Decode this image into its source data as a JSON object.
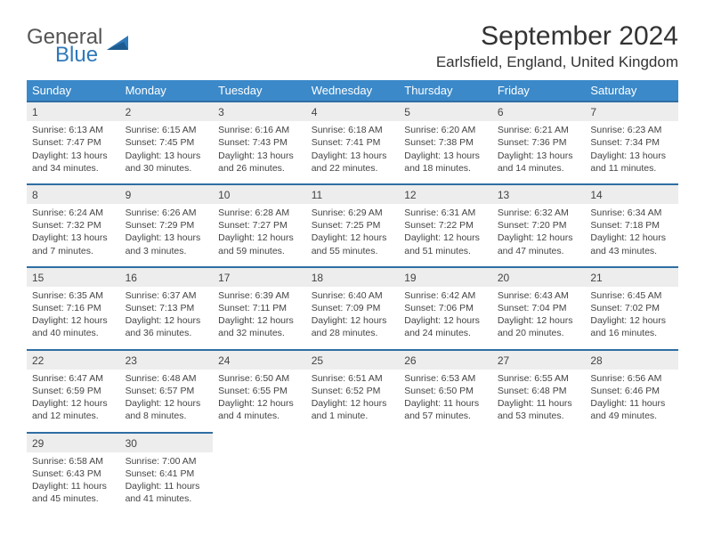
{
  "brand": {
    "line1": "General",
    "line2": "Blue"
  },
  "title": "September 2024",
  "location": "Earlsfield, England, United Kingdom",
  "colors": {
    "header_bg": "#3b89c9",
    "header_text": "#ffffff",
    "daynum_bg": "#ededed",
    "row_border": "#2f6fa3",
    "text": "#444444",
    "brand_gray": "#555555",
    "brand_blue": "#2f78b9"
  },
  "weekdays": [
    "Sunday",
    "Monday",
    "Tuesday",
    "Wednesday",
    "Thursday",
    "Friday",
    "Saturday"
  ],
  "weeks": [
    [
      {
        "n": "1",
        "sr": "6:13 AM",
        "ss": "7:47 PM",
        "dl": "13 hours and 34 minutes."
      },
      {
        "n": "2",
        "sr": "6:15 AM",
        "ss": "7:45 PM",
        "dl": "13 hours and 30 minutes."
      },
      {
        "n": "3",
        "sr": "6:16 AM",
        "ss": "7:43 PM",
        "dl": "13 hours and 26 minutes."
      },
      {
        "n": "4",
        "sr": "6:18 AM",
        "ss": "7:41 PM",
        "dl": "13 hours and 22 minutes."
      },
      {
        "n": "5",
        "sr": "6:20 AM",
        "ss": "7:38 PM",
        "dl": "13 hours and 18 minutes."
      },
      {
        "n": "6",
        "sr": "6:21 AM",
        "ss": "7:36 PM",
        "dl": "13 hours and 14 minutes."
      },
      {
        "n": "7",
        "sr": "6:23 AM",
        "ss": "7:34 PM",
        "dl": "13 hours and 11 minutes."
      }
    ],
    [
      {
        "n": "8",
        "sr": "6:24 AM",
        "ss": "7:32 PM",
        "dl": "13 hours and 7 minutes."
      },
      {
        "n": "9",
        "sr": "6:26 AM",
        "ss": "7:29 PM",
        "dl": "13 hours and 3 minutes."
      },
      {
        "n": "10",
        "sr": "6:28 AM",
        "ss": "7:27 PM",
        "dl": "12 hours and 59 minutes."
      },
      {
        "n": "11",
        "sr": "6:29 AM",
        "ss": "7:25 PM",
        "dl": "12 hours and 55 minutes."
      },
      {
        "n": "12",
        "sr": "6:31 AM",
        "ss": "7:22 PM",
        "dl": "12 hours and 51 minutes."
      },
      {
        "n": "13",
        "sr": "6:32 AM",
        "ss": "7:20 PM",
        "dl": "12 hours and 47 minutes."
      },
      {
        "n": "14",
        "sr": "6:34 AM",
        "ss": "7:18 PM",
        "dl": "12 hours and 43 minutes."
      }
    ],
    [
      {
        "n": "15",
        "sr": "6:35 AM",
        "ss": "7:16 PM",
        "dl": "12 hours and 40 minutes."
      },
      {
        "n": "16",
        "sr": "6:37 AM",
        "ss": "7:13 PM",
        "dl": "12 hours and 36 minutes."
      },
      {
        "n": "17",
        "sr": "6:39 AM",
        "ss": "7:11 PM",
        "dl": "12 hours and 32 minutes."
      },
      {
        "n": "18",
        "sr": "6:40 AM",
        "ss": "7:09 PM",
        "dl": "12 hours and 28 minutes."
      },
      {
        "n": "19",
        "sr": "6:42 AM",
        "ss": "7:06 PM",
        "dl": "12 hours and 24 minutes."
      },
      {
        "n": "20",
        "sr": "6:43 AM",
        "ss": "7:04 PM",
        "dl": "12 hours and 20 minutes."
      },
      {
        "n": "21",
        "sr": "6:45 AM",
        "ss": "7:02 PM",
        "dl": "12 hours and 16 minutes."
      }
    ],
    [
      {
        "n": "22",
        "sr": "6:47 AM",
        "ss": "6:59 PM",
        "dl": "12 hours and 12 minutes."
      },
      {
        "n": "23",
        "sr": "6:48 AM",
        "ss": "6:57 PM",
        "dl": "12 hours and 8 minutes."
      },
      {
        "n": "24",
        "sr": "6:50 AM",
        "ss": "6:55 PM",
        "dl": "12 hours and 4 minutes."
      },
      {
        "n": "25",
        "sr": "6:51 AM",
        "ss": "6:52 PM",
        "dl": "12 hours and 1 minute."
      },
      {
        "n": "26",
        "sr": "6:53 AM",
        "ss": "6:50 PM",
        "dl": "11 hours and 57 minutes."
      },
      {
        "n": "27",
        "sr": "6:55 AM",
        "ss": "6:48 PM",
        "dl": "11 hours and 53 minutes."
      },
      {
        "n": "28",
        "sr": "6:56 AM",
        "ss": "6:46 PM",
        "dl": "11 hours and 49 minutes."
      }
    ],
    [
      {
        "n": "29",
        "sr": "6:58 AM",
        "ss": "6:43 PM",
        "dl": "11 hours and 45 minutes."
      },
      {
        "n": "30",
        "sr": "7:00 AM",
        "ss": "6:41 PM",
        "dl": "11 hours and 41 minutes."
      },
      null,
      null,
      null,
      null,
      null
    ]
  ],
  "labels": {
    "sunrise": "Sunrise:",
    "sunset": "Sunset:",
    "daylight": "Daylight:"
  }
}
